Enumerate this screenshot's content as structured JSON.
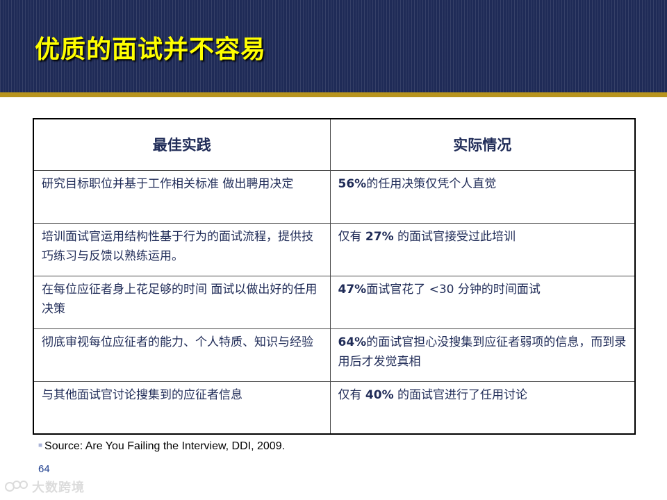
{
  "slide": {
    "title": "优质的面试并不容易",
    "page_number": "64",
    "source": "Source: Are You Failing the Interview, DDI, 2009."
  },
  "table": {
    "headers": [
      "最佳实践",
      "实际情况"
    ],
    "rows": [
      {
        "best": "研究目标职位并基于工作相关标准 做出聘用决定",
        "actual_pre": "",
        "actual_bold": "56%",
        "actual_post": "的任用决策仅凭个人直觉"
      },
      {
        "best": "培训面试官运用结构性基于行为的面试流程，提供技巧练习与反馈以熟练运用。",
        "actual_pre": "仅有 ",
        "actual_bold": "27%",
        "actual_post": " 的面试官接受过此培训"
      },
      {
        "best": "在每位应征者身上花足够的时间 面试以做出好的任用决策",
        "actual_pre": "",
        "actual_bold": "47%",
        "actual_post": "面试官花了 <30 分钟的时间面试"
      },
      {
        "best": "彻底审视每位应征者的能力、个人特质、知识与经验",
        "actual_pre": "",
        "actual_bold": "64%",
        "actual_post": "的面试官担心没搜集到应征者弱项的信息，而到录用后才发觉真相"
      },
      {
        "best": "与其他面试官讨论搜集到的应征者信息",
        "actual_pre": "仅有 ",
        "actual_bold": "40%",
        "actual_post": " 的面试官进行了任用讨论"
      }
    ]
  },
  "watermark": {
    "text": "大数跨境",
    "icon": "link-icon"
  },
  "colors": {
    "header_bg": "#1f2b57",
    "title": "#ffff00",
    "gold_rule": "#b8941d",
    "text": "#1f2b57"
  }
}
